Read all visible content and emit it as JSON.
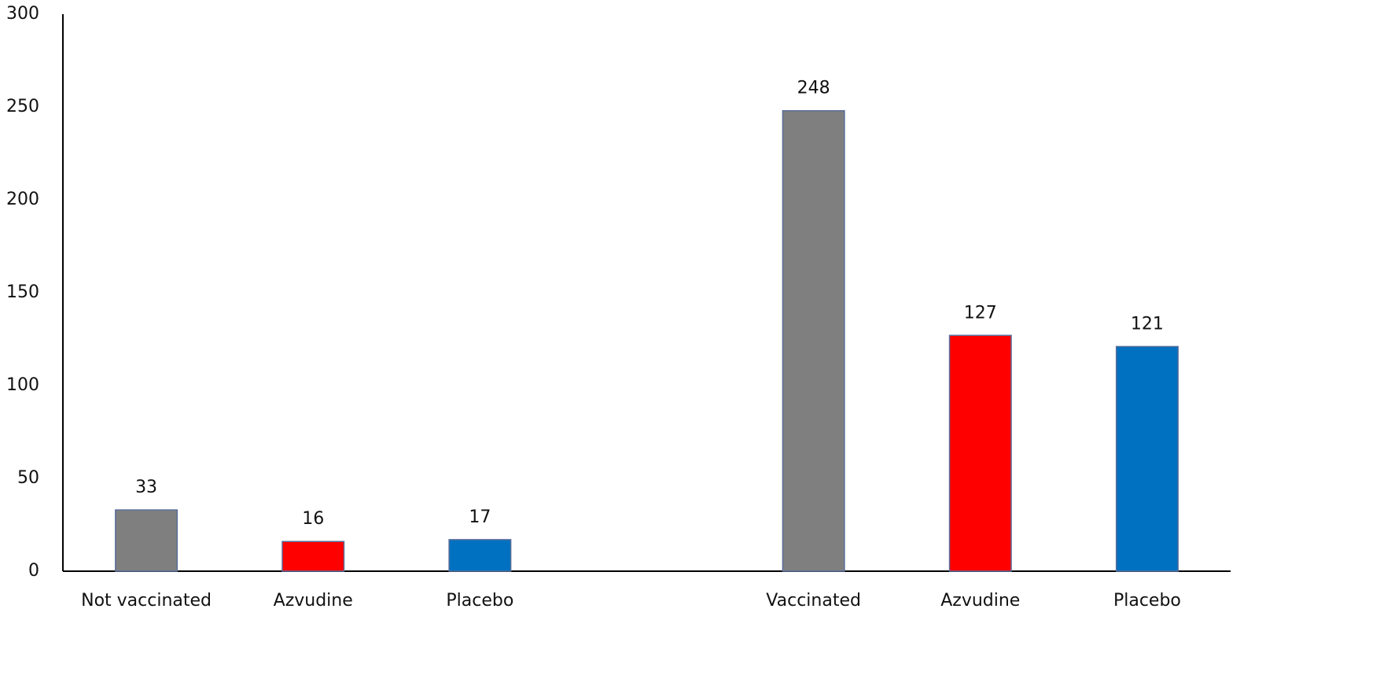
{
  "chart_data": {
    "type": "bar",
    "categories": [
      "Not vaccinated",
      "Azvudine",
      "Placebo",
      null,
      "Vaccinated",
      "Azvudine",
      "Placebo"
    ],
    "values": [
      33,
      16,
      17,
      null,
      248,
      127,
      121
    ],
    "colors": [
      "#7f7f7f",
      "#ff0000",
      "#0070c0",
      null,
      "#7f7f7f",
      "#ff0000",
      "#0070c0"
    ],
    "ylim": [
      0,
      300
    ],
    "yticks": [
      0,
      50,
      100,
      150,
      200,
      250,
      300
    ],
    "grid": false
  }
}
